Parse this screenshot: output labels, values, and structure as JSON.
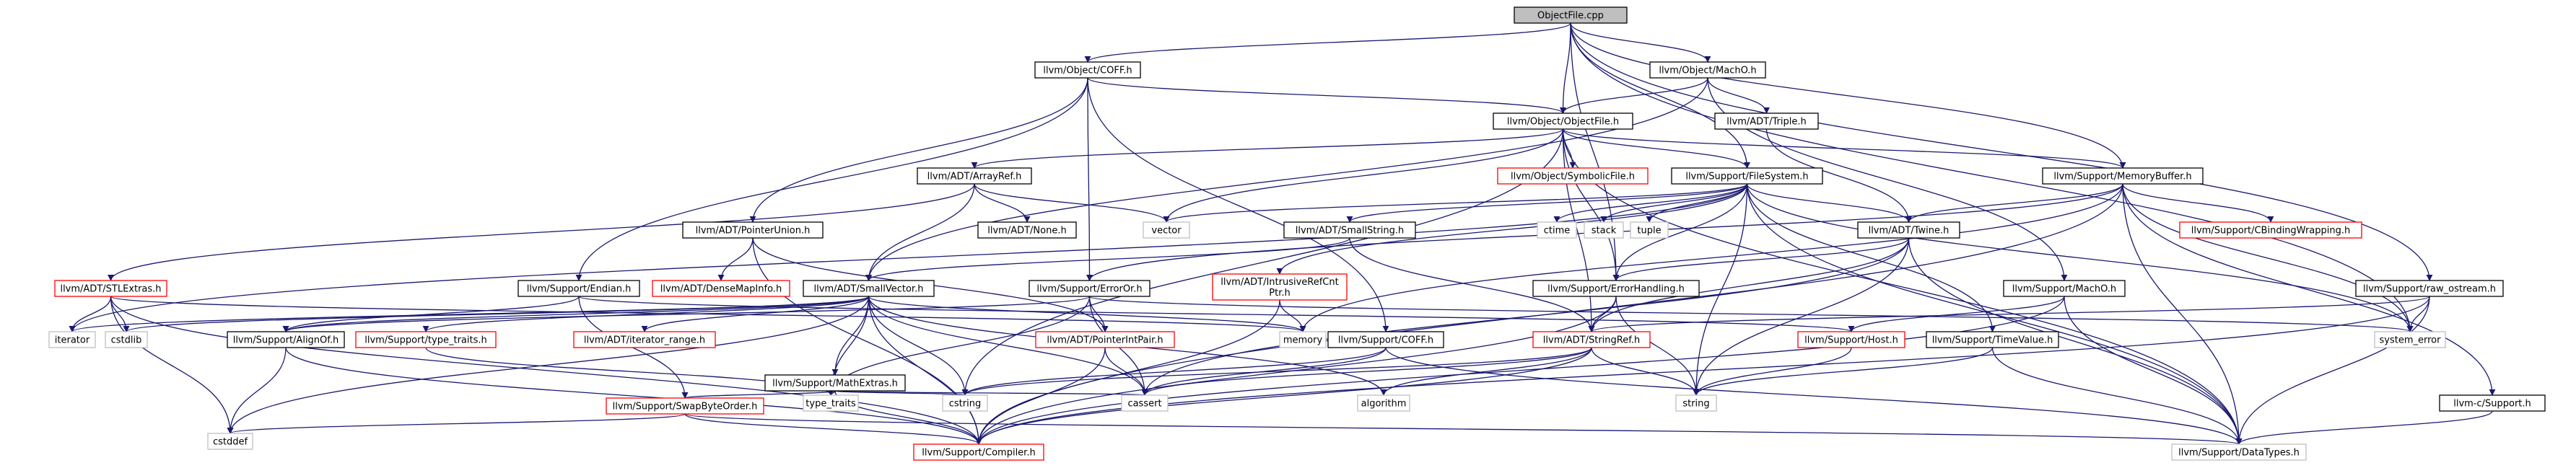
{
  "graph": {
    "title": "ObjectFile.cpp",
    "kind": "include-dependency-graph",
    "colors": {
      "edge": "#191970",
      "root_fill": "#bfbfbf",
      "root_border": "#000000",
      "documented_fill": "#ffffff",
      "documented_border": "#000000",
      "undocumented_border": "#ff0000",
      "system_border": "#bfbfbf",
      "system_text": "#000000"
    },
    "nodes": {
      "root": {
        "label": "ObjectFile.cpp",
        "style": "root"
      },
      "coff": {
        "label": "llvm/Object/COFF.h",
        "style": "documented"
      },
      "macho": {
        "label": "llvm/Object/MachO.h",
        "style": "documented"
      },
      "objectfile": {
        "label": "llvm/Object/ObjectFile.h",
        "style": "documented"
      },
      "triple": {
        "label": "llvm/ADT/Triple.h",
        "style": "documented"
      },
      "arrayref": {
        "label": "llvm/ADT/ArrayRef.h",
        "style": "documented"
      },
      "symbolicfile": {
        "label": "llvm/Object/SymbolicFile.h",
        "style": "undocumented"
      },
      "filesystem": {
        "label": "llvm/Support/FileSystem.h",
        "style": "documented"
      },
      "memorybuffer": {
        "label": "llvm/Support/MemoryBuffer.h",
        "style": "documented"
      },
      "pointerunion": {
        "label": "llvm/ADT/PointerUnion.h",
        "style": "documented"
      },
      "none": {
        "label": "llvm/ADT/None.h",
        "style": "documented"
      },
      "vector": {
        "label": "vector",
        "style": "system"
      },
      "ctime": {
        "label": "ctime",
        "style": "system"
      },
      "stack": {
        "label": "stack",
        "style": "system"
      },
      "tuple": {
        "label": "tuple",
        "style": "system"
      },
      "smallstring": {
        "label": "llvm/ADT/SmallString.h",
        "style": "documented"
      },
      "twine": {
        "label": "llvm/ADT/Twine.h",
        "style": "documented"
      },
      "cbindingwrapping": {
        "label": "llvm/Support/CBindingWrapping.h",
        "style": "undocumented"
      },
      "stlextras": {
        "label": "llvm/ADT/STLExtras.h",
        "style": "undocumented"
      },
      "densemapinfo": {
        "label": "llvm/ADT/DenseMapInfo.h",
        "style": "undocumented"
      },
      "supportendian": {
        "label": "llvm/Support/Endian.h",
        "style": "documented"
      },
      "smallvector": {
        "label": "llvm/ADT/SmallVector.h",
        "style": "documented"
      },
      "erroror": {
        "label": "llvm/Support/ErrorOr.h",
        "style": "documented"
      },
      "intrusiverefcnt": {
        "label_lines": [
          "llvm/ADT/IntrusiveRefCnt",
          "Ptr.h"
        ],
        "style": "undocumented"
      },
      "errorhandling": {
        "label": "llvm/Support/ErrorHandling.h",
        "style": "documented"
      },
      "supportmacho": {
        "label": "llvm/Support/MachO.h",
        "style": "documented"
      },
      "rawostream": {
        "label": "llvm/Support/raw_ostream.h",
        "style": "documented"
      },
      "iterator": {
        "label": "iterator",
        "style": "system"
      },
      "cstdlib": {
        "label": "cstdlib",
        "style": "system"
      },
      "alignof": {
        "label": "llvm/Support/AlignOf.h",
        "style": "documented"
      },
      "typetraits": {
        "label": "llvm/Support/type_traits.h",
        "style": "undocumented"
      },
      "iteratorrange": {
        "label": "llvm/ADT/iterator_range.h",
        "style": "undocumented"
      },
      "memory": {
        "label": "memory",
        "style": "system"
      },
      "supportcoff": {
        "label": "llvm/Support/COFF.h",
        "style": "documented"
      },
      "pointerintpair": {
        "label": "llvm/ADT/PointerIntPair.h",
        "style": "undocumented"
      },
      "stringref": {
        "label": "llvm/ADT/StringRef.h",
        "style": "undocumented"
      },
      "host": {
        "label": "llvm/Support/Host.h",
        "style": "undocumented"
      },
      "timevalue": {
        "label": "llvm/Support/TimeValue.h",
        "style": "documented"
      },
      "systemerror": {
        "label": "system_error",
        "style": "system"
      },
      "mathextras": {
        "label": "llvm/Support/MathExtras.h",
        "style": "documented"
      },
      "stdtypetraits": {
        "label": "type_traits",
        "style": "system"
      },
      "cstring": {
        "label": "cstring",
        "style": "system"
      },
      "algorithm": {
        "label": "algorithm",
        "style": "system"
      },
      "cassert": {
        "label": "cassert",
        "style": "system"
      },
      "string": {
        "label": "string",
        "style": "system"
      },
      "llvmcsupport": {
        "label": "llvm-c/Support.h",
        "style": "documented"
      },
      "swapbyteorder": {
        "label": "llvm/Support/SwapByteOrder.h",
        "style": "undocumented"
      },
      "cstddef": {
        "label": "cstddef",
        "style": "system"
      },
      "compiler": {
        "label": "llvm/Support/Compiler.h",
        "style": "undocumented"
      },
      "datatypes": {
        "label": "llvm/Support/DataTypes.h",
        "style": "system"
      }
    },
    "edges": [
      [
        "root",
        "coff"
      ],
      [
        "root",
        "macho"
      ],
      [
        "root",
        "objectfile"
      ],
      [
        "root",
        "filesystem"
      ],
      [
        "root",
        "memorybuffer"
      ],
      [
        "root",
        "errorhandling"
      ],
      [
        "root",
        "rawostream"
      ],
      [
        "root",
        "systemerror"
      ],
      [
        "coff",
        "objectfile"
      ],
      [
        "coff",
        "pointerunion"
      ],
      [
        "coff",
        "supportendian"
      ],
      [
        "coff",
        "erroror"
      ],
      [
        "coff",
        "supportcoff"
      ],
      [
        "macho",
        "objectfile"
      ],
      [
        "macho",
        "triple"
      ],
      [
        "macho",
        "smallvector"
      ],
      [
        "macho",
        "supportmacho"
      ],
      [
        "objectfile",
        "arrayref"
      ],
      [
        "objectfile",
        "symbolicfile"
      ],
      [
        "objectfile",
        "filesystem"
      ],
      [
        "objectfile",
        "memorybuffer"
      ],
      [
        "objectfile",
        "vector"
      ],
      [
        "objectfile",
        "errorhandling"
      ],
      [
        "objectfile",
        "stringref"
      ],
      [
        "objectfile",
        "cstring"
      ],
      [
        "objectfile",
        "datatypes"
      ],
      [
        "triple",
        "twine"
      ],
      [
        "arrayref",
        "none"
      ],
      [
        "arrayref",
        "smallvector"
      ],
      [
        "arrayref",
        "stlextras"
      ],
      [
        "arrayref",
        "vector"
      ],
      [
        "filesystem",
        "smallstring"
      ],
      [
        "filesystem",
        "twine"
      ],
      [
        "filesystem",
        "intrusiverefcnt"
      ],
      [
        "filesystem",
        "errorhandling"
      ],
      [
        "filesystem",
        "timevalue"
      ],
      [
        "filesystem",
        "vector"
      ],
      [
        "filesystem",
        "ctime"
      ],
      [
        "filesystem",
        "stack"
      ],
      [
        "filesystem",
        "tuple"
      ],
      [
        "filesystem",
        "string"
      ],
      [
        "filesystem",
        "systemerror"
      ],
      [
        "filesystem",
        "datatypes"
      ],
      [
        "filesystem",
        "iterator"
      ],
      [
        "memorybuffer",
        "twine"
      ],
      [
        "memorybuffer",
        "cbindingwrapping"
      ],
      [
        "memorybuffer",
        "erroror"
      ],
      [
        "memorybuffer",
        "systemerror"
      ],
      [
        "memorybuffer",
        "llvmcsupport"
      ],
      [
        "memorybuffer",
        "compiler"
      ],
      [
        "memorybuffer",
        "datatypes"
      ],
      [
        "memorybuffer",
        "memory"
      ],
      [
        "pointerunion",
        "densemapinfo"
      ],
      [
        "pointerunion",
        "pointerintpair"
      ],
      [
        "pointerunion",
        "compiler"
      ],
      [
        "smallstring",
        "smallvector"
      ],
      [
        "smallstring",
        "stringref"
      ],
      [
        "twine",
        "errorhandling"
      ],
      [
        "twine",
        "stringref"
      ],
      [
        "twine",
        "string"
      ],
      [
        "twine",
        "cassert"
      ],
      [
        "twine",
        "datatypes"
      ],
      [
        "stlextras",
        "compiler"
      ],
      [
        "stlextras",
        "iterator"
      ],
      [
        "stlextras",
        "cstdlib"
      ],
      [
        "stlextras",
        "cstddef"
      ],
      [
        "stlextras",
        "memory"
      ],
      [
        "supportendian",
        "alignof"
      ],
      [
        "supportendian",
        "swapbyteorder"
      ],
      [
        "supportendian",
        "host"
      ],
      [
        "smallvector",
        "alignof"
      ],
      [
        "smallvector",
        "typetraits"
      ],
      [
        "smallvector",
        "iteratorrange"
      ],
      [
        "smallvector",
        "mathextras"
      ],
      [
        "smallvector",
        "compiler"
      ],
      [
        "smallvector",
        "iterator"
      ],
      [
        "smallvector",
        "cstdlib"
      ],
      [
        "smallvector",
        "memory"
      ],
      [
        "smallvector",
        "cstring"
      ],
      [
        "smallvector",
        "cassert"
      ],
      [
        "smallvector",
        "algorithm"
      ],
      [
        "smallvector",
        "cstddef"
      ],
      [
        "smallvector",
        "stdtypetraits"
      ],
      [
        "erroror",
        "alignof"
      ],
      [
        "erroror",
        "systemerror"
      ],
      [
        "erroror",
        "cassert"
      ],
      [
        "erroror",
        "stdtypetraits"
      ],
      [
        "erroror",
        "pointerintpair"
      ],
      [
        "intrusiverefcnt",
        "memory"
      ],
      [
        "intrusiverefcnt",
        "compiler"
      ],
      [
        "errorhandling",
        "stringref"
      ],
      [
        "errorhandling",
        "compiler"
      ],
      [
        "errorhandling",
        "string"
      ],
      [
        "supportmacho",
        "host"
      ],
      [
        "supportmacho",
        "datatypes"
      ],
      [
        "supportmacho",
        "compiler"
      ],
      [
        "rawostream",
        "stringref"
      ],
      [
        "rawostream",
        "systemerror"
      ],
      [
        "rawostream",
        "compiler"
      ],
      [
        "rawostream",
        "datatypes"
      ],
      [
        "alignof",
        "compiler"
      ],
      [
        "alignof",
        "cstddef"
      ],
      [
        "typetraits",
        "stdtypetraits"
      ],
      [
        "mathextras",
        "swapbyteorder"
      ],
      [
        "mathextras",
        "compiler"
      ],
      [
        "mathextras",
        "cstring"
      ],
      [
        "mathextras",
        "stdtypetraits"
      ],
      [
        "mathextras",
        "cassert"
      ],
      [
        "supportcoff",
        "datatypes"
      ],
      [
        "supportcoff",
        "cassert"
      ],
      [
        "supportcoff",
        "cstring"
      ],
      [
        "pointerintpair",
        "compiler"
      ],
      [
        "pointerintpair",
        "cassert"
      ],
      [
        "stringref",
        "compiler"
      ],
      [
        "stringref",
        "algorithm"
      ],
      [
        "stringref",
        "cassert"
      ],
      [
        "stringref",
        "cstring"
      ],
      [
        "stringref",
        "string"
      ],
      [
        "host",
        "string"
      ],
      [
        "timevalue",
        "datatypes"
      ],
      [
        "timevalue",
        "string"
      ],
      [
        "llvmcsupport",
        "datatypes"
      ],
      [
        "swapbyteorder",
        "compiler"
      ],
      [
        "swapbyteorder",
        "datatypes"
      ],
      [
        "swapbyteorder",
        "cstddef"
      ]
    ]
  }
}
